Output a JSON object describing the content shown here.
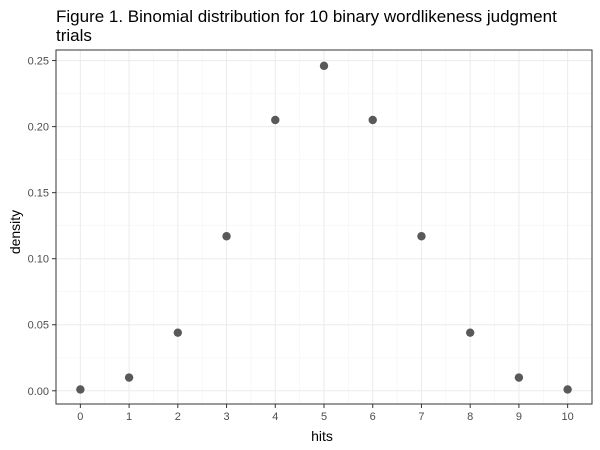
{
  "chart_data": {
    "type": "scatter",
    "title_line1": "Figure 1. Binomial distribution for 10 binary wordlikeness judgment",
    "title_line2": "trials",
    "xlabel": "hits",
    "ylabel": "density",
    "x": [
      0,
      1,
      2,
      3,
      4,
      5,
      6,
      7,
      8,
      9,
      10
    ],
    "y": [
      0.001,
      0.01,
      0.044,
      0.117,
      0.205,
      0.246,
      0.205,
      0.117,
      0.044,
      0.01,
      0.001
    ],
    "x_ticks": [
      "0",
      "1",
      "2",
      "3",
      "4",
      "5",
      "6",
      "7",
      "8",
      "9",
      "10"
    ],
    "y_ticks": [
      "0.00",
      "0.05",
      "0.10",
      "0.15",
      "0.20",
      "0.25"
    ],
    "xlim": [
      -0.5,
      10.5
    ],
    "ylim": [
      -0.01,
      0.258
    ],
    "grid": true,
    "point_color": "#595959"
  }
}
